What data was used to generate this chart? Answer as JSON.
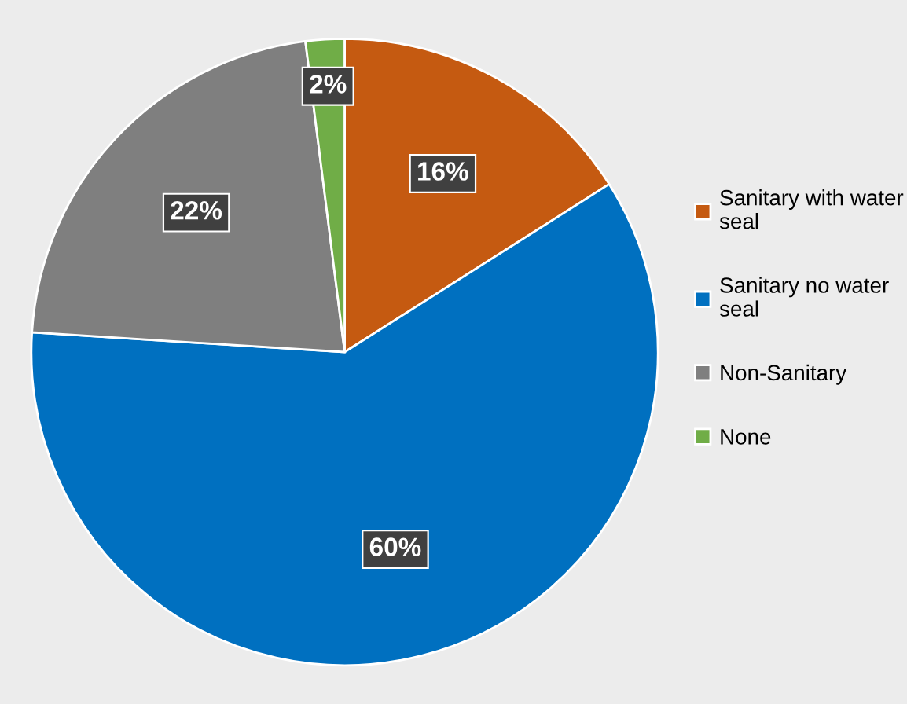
{
  "chart_data": {
    "type": "pie",
    "categories": [
      "Sanitary with water seal",
      "Sanitary no water seal",
      "Non-Sanitary",
      "None"
    ],
    "values": [
      16,
      60,
      22,
      2
    ],
    "colors": [
      "#c55a11",
      "#0070c0",
      "#7f7f7f",
      "#70ad47"
    ],
    "value_labels": [
      "16%",
      "60%",
      "22%",
      "2%"
    ],
    "legend": "right"
  }
}
